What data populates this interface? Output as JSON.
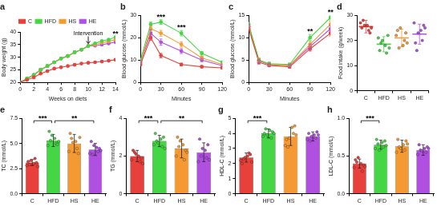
{
  "chart_data": [
    {
      "type": "line",
      "title": "a",
      "x_label": "Weeks on diets",
      "y_label": "Body weight (g)",
      "legend": "top",
      "marker": "circle",
      "x": [
        0,
        1,
        2,
        3,
        4,
        5,
        6,
        7,
        8,
        9,
        10,
        11,
        12,
        13,
        14
      ],
      "xlim": [
        0,
        14
      ],
      "xticks": [
        0,
        2,
        4,
        6,
        8,
        10,
        12,
        14
      ],
      "ylim": [
        20,
        40
      ],
      "yticks": [
        20,
        25,
        30,
        35,
        40
      ],
      "series": [
        {
          "name": "C",
          "color": "#e8413c",
          "values": [
            20,
            21,
            22,
            23.5,
            24.5,
            25.5,
            26,
            26.5,
            27,
            27.5,
            27.8,
            28,
            28.3,
            28.6,
            29
          ]
        },
        {
          "name": "HFD",
          "color": "#45d645",
          "values": [
            20,
            21.5,
            23,
            25,
            26.5,
            28,
            29.5,
            30.5,
            32,
            33,
            34.5,
            35.5,
            36.5,
            37,
            38
          ]
        },
        {
          "name": "HS",
          "color": "#f59a32",
          "values": [
            20,
            21.5,
            23,
            25,
            26.5,
            28,
            29.5,
            30.5,
            32,
            33,
            34.5,
            35,
            35.8,
            36.3,
            37
          ]
        },
        {
          "name": "HE",
          "color": "#b050e0",
          "values": [
            20,
            21.5,
            23,
            25,
            26.5,
            28,
            29.5,
            30.5,
            32,
            33,
            34.5,
            34.6,
            35,
            35.5,
            36
          ]
        }
      ],
      "annotations": [
        {
          "text": "Intervention",
          "x": 10
        },
        {
          "text": "**",
          "x": 14
        }
      ]
    },
    {
      "type": "line",
      "title": "b",
      "x_label": "Minutes",
      "y_label": "Blood glucose (mmol/L)",
      "marker": "circle",
      "x": [
        0,
        15,
        30,
        60,
        90,
        120
      ],
      "xlim": [
        0,
        120
      ],
      "xticks": [
        0,
        30,
        60,
        90,
        120
      ],
      "ylim": [
        0,
        30
      ],
      "yticks": [
        0,
        10,
        20,
        30
      ],
      "series": [
        {
          "color": "#e8413c",
          "values": [
            8,
            20,
            12,
            8,
            7,
            6.5
          ],
          "errors": [
            0.5,
            1.2,
            1,
            0.6,
            0.5,
            0.4
          ]
        },
        {
          "color": "#45d645",
          "values": [
            10,
            26,
            27,
            22,
            13,
            9
          ],
          "errors": [
            0.6,
            1,
            1,
            1.2,
            0.8,
            0.6
          ]
        },
        {
          "color": "#f59a32",
          "values": [
            9,
            24,
            22,
            17,
            11,
            8
          ],
          "errors": [
            0.5,
            1.2,
            1.3,
            1.2,
            0.7,
            0.5
          ]
        },
        {
          "color": "#b050e0",
          "values": [
            9,
            22,
            18,
            14,
            10,
            7.5
          ],
          "errors": [
            0.5,
            1.5,
            1.4,
            1.1,
            0.7,
            0.5
          ]
        }
      ],
      "annotations": [
        {
          "text": "***",
          "x": 30
        },
        {
          "text": "***",
          "x": 60
        }
      ]
    },
    {
      "type": "line",
      "title": "c",
      "x_label": "Minutes",
      "y_label": "Blood glucose (mmol/L)",
      "marker": "circle",
      "x": [
        0,
        15,
        30,
        60,
        90,
        120
      ],
      "xlim": [
        0,
        120
      ],
      "xticks": [
        0,
        30,
        60,
        90,
        120
      ],
      "ylim": [
        0,
        15
      ],
      "yticks": [
        0,
        5,
        10,
        15
      ],
      "series": [
        {
          "color": "#e8413c",
          "values": [
            12,
            4.5,
            3.8,
            3.5,
            7.5,
            11
          ],
          "errors": [
            0.5,
            0.4,
            0.3,
            0.3,
            0.5,
            0.6
          ]
        },
        {
          "color": "#45d645",
          "values": [
            13,
            5,
            4.2,
            4,
            10,
            14.5
          ],
          "errors": [
            0.5,
            0.4,
            0.3,
            0.3,
            0.7,
            0.5
          ]
        },
        {
          "color": "#f59a32",
          "values": [
            12.5,
            5,
            4,
            3.8,
            8.5,
            13
          ],
          "errors": [
            0.5,
            0.4,
            0.3,
            0.3,
            0.6,
            0.7
          ]
        },
        {
          "color": "#b050e0",
          "values": [
            12.5,
            4.8,
            4,
            3.8,
            8,
            12
          ],
          "errors": [
            0.5,
            0.4,
            0.3,
            0.3,
            0.6,
            0.7
          ]
        }
      ],
      "annotations": [
        {
          "text": "**",
          "x": 90
        },
        {
          "text": "**",
          "x": 120
        }
      ]
    },
    {
      "type": "dot",
      "title": "d",
      "y_label": "Food intake (g/week)",
      "categories": [
        "C",
        "HFD",
        "HS",
        "HE"
      ],
      "colors": [
        "#e8413c",
        "#45d645",
        "#f59a32",
        "#b050e0"
      ],
      "values": [
        25.5,
        18.5,
        21,
        22.5
      ],
      "errors": [
        2.5,
        3,
        3.5,
        4
      ],
      "points": [
        [
          27,
          26,
          25,
          24,
          28,
          23,
          26,
          25
        ],
        [
          21,
          18,
          16,
          15,
          19,
          22,
          20,
          17
        ],
        [
          22,
          18,
          24,
          20,
          17,
          23,
          25,
          19
        ],
        [
          27,
          24,
          19,
          20,
          16,
          26,
          23,
          25
        ]
      ],
      "ylim": [
        0,
        30
      ],
      "yticks": [
        0,
        10,
        20,
        30
      ]
    },
    {
      "type": "bar",
      "title": "e",
      "y_label": "TC (mmol/L)",
      "categories": [
        "C",
        "HFD",
        "HS",
        "HE"
      ],
      "colors": [
        "#e8413c",
        "#45d645",
        "#f59a32",
        "#b050e0"
      ],
      "values": [
        3.1,
        5.3,
        5.0,
        4.4
      ],
      "errors": [
        0.3,
        0.6,
        0.9,
        0.6
      ],
      "points": [
        [
          2.8,
          3.0,
          3.2,
          3.5,
          2.9,
          3.1,
          3.3,
          2.7
        ],
        [
          4.8,
          5.5,
          6.2,
          5.0,
          5.3,
          4.9,
          5.8,
          5.2
        ],
        [
          4.2,
          5.2,
          6.0,
          4.5,
          5.5,
          4.0,
          5.1,
          5.6
        ],
        [
          4.0,
          4.6,
          5.2,
          4.2,
          3.9,
          4.5,
          4.8,
          4.3
        ]
      ],
      "ylim": [
        0,
        7.5
      ],
      "yticks": [
        {
          "value": 0,
          "label": "0.0"
        },
        2.5,
        {
          "value": 5,
          "label": "5.0"
        },
        7.5
      ],
      "annotations": [
        {
          "text": "***",
          "from": "C",
          "to": "HFD"
        },
        {
          "text": "**",
          "from": "HFD",
          "to": "HE"
        }
      ]
    },
    {
      "type": "bar",
      "title": "f",
      "y_label": "TG (mmol/L)",
      "categories": [
        "C",
        "HFD",
        "HS",
        "HE"
      ],
      "colors": [
        "#e8413c",
        "#45d645",
        "#f59a32",
        "#b050e0"
      ],
      "values": [
        2.0,
        2.8,
        2.4,
        2.2
      ],
      "errors": [
        0.3,
        0.3,
        0.5,
        0.5
      ],
      "points": [
        [
          1.8,
          2.0,
          2.3,
          1.7,
          2.2,
          1.9,
          2.1,
          1.6
        ],
        [
          2.6,
          2.9,
          3.2,
          2.5,
          2.8,
          3.0,
          2.7,
          2.4
        ],
        [
          2.0,
          2.6,
          3.0,
          1.8,
          2.5,
          2.3,
          2.8,
          2.2
        ],
        [
          1.7,
          2.3,
          2.9,
          1.9,
          2.0,
          2.6,
          2.4,
          1.8
        ]
      ],
      "ylim": [
        0,
        4
      ],
      "yticks": [
        0,
        2,
        4
      ],
      "annotations": [
        {
          "text": "***",
          "from": "C",
          "to": "HFD"
        },
        {
          "text": "**",
          "from": "HFD",
          "to": "HE"
        }
      ]
    },
    {
      "type": "bar",
      "title": "g",
      "y_label": "HDL-C (mmol/L)",
      "categories": [
        "C",
        "HFD",
        "HS",
        "HE"
      ],
      "colors": [
        "#e8413c",
        "#45d645",
        "#f59a32",
        "#b050e0"
      ],
      "values": [
        2.4,
        4.0,
        3.8,
        3.8
      ],
      "errors": [
        0.3,
        0.3,
        0.6,
        0.3
      ],
      "points": [
        [
          2.2,
          2.5,
          2.0,
          2.7,
          2.3,
          2.6,
          2.4,
          2.1
        ],
        [
          3.8,
          4.2,
          4.0,
          3.7,
          4.3,
          4.1,
          3.9,
          4.0
        ],
        [
          3.2,
          4.4,
          3.6,
          4.0,
          3.1,
          4.5,
          3.7,
          3.9
        ],
        [
          3.6,
          3.9,
          4.0,
          3.7,
          3.5,
          4.1,
          3.8,
          3.9
        ]
      ],
      "ylim": [
        0,
        5
      ],
      "yticks": [
        0,
        1,
        2,
        3,
        4,
        5
      ],
      "annotations": [
        {
          "text": "***",
          "from": "C",
          "to": "HFD"
        }
      ]
    },
    {
      "type": "bar",
      "title": "h",
      "y_label": "LDL-C (mmol/L)",
      "categories": [
        "C",
        "HFD",
        "HS",
        "HE"
      ],
      "colors": [
        "#e8413c",
        "#45d645",
        "#f59a32",
        "#b050e0"
      ],
      "values": [
        0.4,
        0.65,
        0.63,
        0.58
      ],
      "errors": [
        0.06,
        0.06,
        0.08,
        0.07
      ],
      "points": [
        [
          0.35,
          0.4,
          0.45,
          0.3,
          0.42,
          0.38,
          0.48,
          0.36
        ],
        [
          0.6,
          0.68,
          0.72,
          0.62,
          0.66,
          0.7,
          0.58,
          0.64
        ],
        [
          0.55,
          0.65,
          0.72,
          0.58,
          0.62,
          0.7,
          0.6,
          0.66
        ],
        [
          0.52,
          0.6,
          0.65,
          0.55,
          0.58,
          0.62,
          0.57,
          0.6
        ]
      ],
      "ylim": [
        0,
        1
      ],
      "yticks": [
        {
          "value": 0,
          "label": "0.0"
        },
        0.5,
        {
          "value": 1,
          "label": "1.0"
        }
      ],
      "annotations": [
        {
          "text": "***",
          "from": "C",
          "to": "HFD"
        }
      ]
    }
  ]
}
